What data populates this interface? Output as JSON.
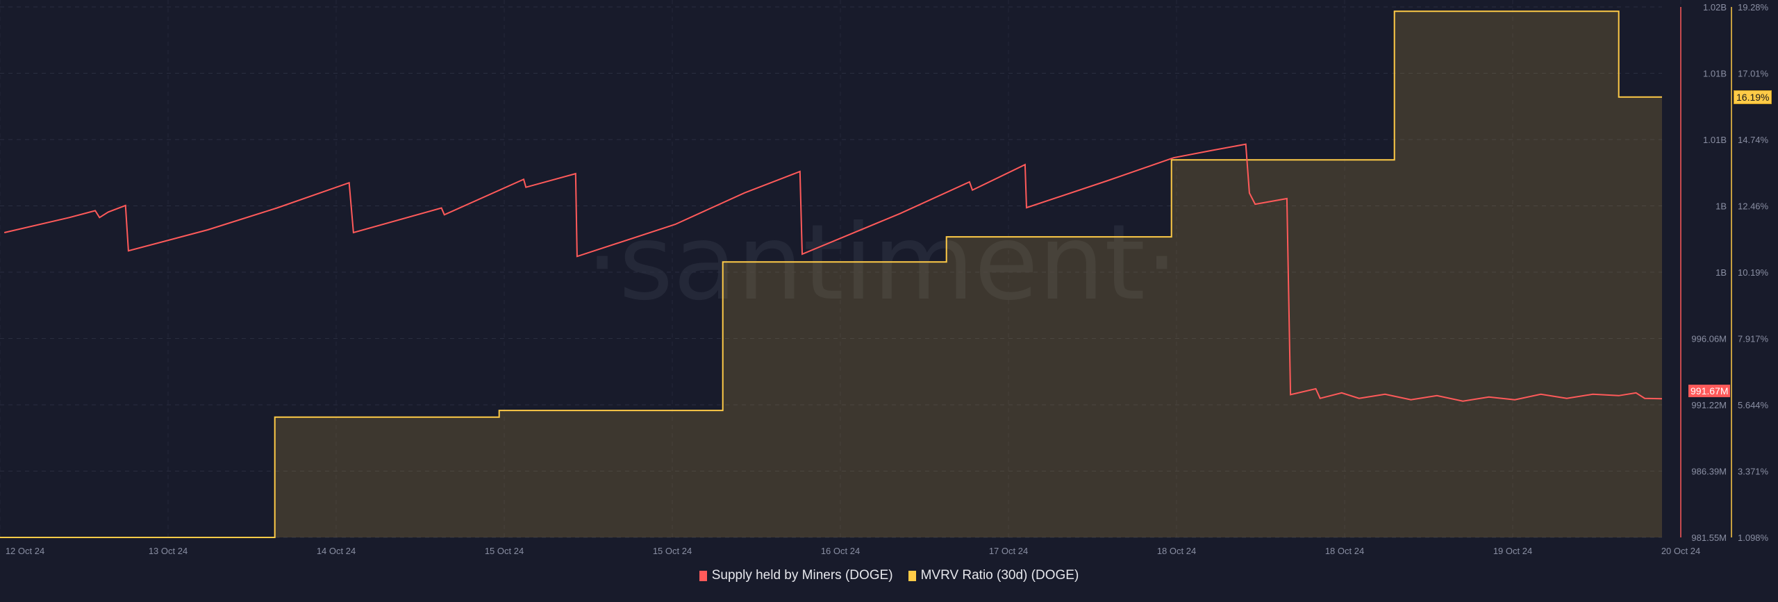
{
  "chart_data": {
    "type": "line",
    "watermark": "·santiment·",
    "x_range": [
      "2024-10-12T00:00",
      "2024-10-20T00:00"
    ],
    "x_tick_labels": [
      "12 Oct 24",
      "13 Oct 24",
      "14 Oct 24",
      "15 Oct 24",
      "15 Oct 24",
      "16 Oct 24",
      "17 Oct 24",
      "18 Oct 24",
      "18 Oct 24",
      "19 Oct 24",
      "20 Oct 24"
    ],
    "grid": true,
    "legend_position": "bottom",
    "y_left": {
      "range_millions": [
        981.55,
        1020.27
      ],
      "tick_labels": [
        "1.02B",
        "1.01B",
        "1.01B",
        "1B",
        "1B",
        "996.06M",
        "991.22M",
        "986.39M",
        "981.55M"
      ],
      "color": "#ff5a5a"
    },
    "y_right": {
      "range_percent": [
        1.098,
        19.28
      ],
      "tick_labels": [
        "19.28%",
        "17.01%",
        "14.74%",
        "12.46%",
        "10.19%",
        "7.917%",
        "5.644%",
        "3.371%",
        "1.098%"
      ],
      "color": "#ffcb47"
    },
    "series": [
      {
        "name": "Supply held by Miners (DOGE)",
        "axis": "left",
        "color": "#ff5a5a",
        "last_value_label": "991.67M",
        "last_value": 991.67,
        "points": [
          [
            "2024-10-12T00:30",
            1003.8
          ],
          [
            "2024-10-12T08:00",
            1004.9
          ],
          [
            "2024-10-12T11:00",
            1005.4
          ],
          [
            "2024-10-12T11:30",
            1004.9
          ],
          [
            "2024-10-12T12:30",
            1005.3
          ],
          [
            "2024-10-12T14:30",
            1005.78
          ],
          [
            "2024-10-12T14:50",
            1002.47
          ],
          [
            "2024-10-13T00:00",
            1004.0
          ],
          [
            "2024-10-13T08:00",
            1005.6
          ],
          [
            "2024-10-13T16:20",
            1007.44
          ],
          [
            "2024-10-13T16:50",
            1003.8
          ],
          [
            "2024-10-14T03:00",
            1005.6
          ],
          [
            "2024-10-14T03:20",
            1005.1
          ],
          [
            "2024-10-14T12:30",
            1007.69
          ],
          [
            "2024-10-14T12:45",
            1007.11
          ],
          [
            "2024-10-14T18:30",
            1008.1
          ],
          [
            "2024-10-14T18:40",
            1002.06
          ],
          [
            "2024-10-15T06:00",
            1004.4
          ],
          [
            "2024-10-15T14:00",
            1006.7
          ],
          [
            "2024-10-15T20:25",
            1008.26
          ],
          [
            "2024-10-15T20:40",
            1002.23
          ],
          [
            "2024-10-16T08:00",
            1005.2
          ],
          [
            "2024-10-16T16:00",
            1007.5
          ],
          [
            "2024-10-16T16:20",
            1006.9
          ],
          [
            "2024-10-16T22:25",
            1008.76
          ],
          [
            "2024-10-16T22:35",
            1005.62
          ],
          [
            "2024-10-17T08:00",
            1007.6
          ],
          [
            "2024-10-17T15:35",
            1009.26
          ],
          [
            "2024-10-17T20:00",
            1009.8
          ],
          [
            "2024-10-17T23:55",
            1010.25
          ],
          [
            "2024-10-18T00:20",
            1006.69
          ],
          [
            "2024-10-18T01:00",
            1005.87
          ],
          [
            "2024-10-18T04:40",
            1006.28
          ],
          [
            "2024-10-18T05:05",
            991.97
          ],
          [
            "2024-10-18T08:00",
            992.4
          ],
          [
            "2024-10-18T08:30",
            991.7
          ],
          [
            "2024-10-18T11:00",
            992.1
          ],
          [
            "2024-10-18T13:00",
            991.7
          ],
          [
            "2024-10-18T16:00",
            992.0
          ],
          [
            "2024-10-18T19:00",
            991.6
          ],
          [
            "2024-10-18T22:00",
            991.9
          ],
          [
            "2024-10-19T01:00",
            991.5
          ],
          [
            "2024-10-19T04:00",
            991.8
          ],
          [
            "2024-10-19T07:00",
            991.6
          ],
          [
            "2024-10-19T10:00",
            992.0
          ],
          [
            "2024-10-19T13:00",
            991.7
          ],
          [
            "2024-10-19T16:00",
            992.0
          ],
          [
            "2024-10-19T19:00",
            991.9
          ],
          [
            "2024-10-19T21:00",
            992.1
          ],
          [
            "2024-10-19T22:00",
            991.7
          ],
          [
            "2024-10-20T00:00",
            991.67
          ]
        ]
      },
      {
        "name": "MVRV Ratio (30d) (DOGE)",
        "axis": "right",
        "color": "#ffcb47",
        "fill": true,
        "last_value_label": "16.19%",
        "last_value": 16.19,
        "points": [
          [
            "2024-10-12T00:00",
            1.098
          ],
          [
            "2024-10-13T07:45",
            1.098
          ],
          [
            "2024-10-13T07:45",
            5.22
          ],
          [
            "2024-10-14T09:40",
            5.22
          ],
          [
            "2024-10-14T09:40",
            5.45
          ],
          [
            "2024-10-15T11:30",
            5.45
          ],
          [
            "2024-10-15T11:30",
            10.54
          ],
          [
            "2024-10-16T13:20",
            10.54
          ],
          [
            "2024-10-16T13:20",
            11.4
          ],
          [
            "2024-10-17T15:20",
            11.4
          ],
          [
            "2024-10-17T15:20",
            14.04
          ],
          [
            "2024-10-18T17:05",
            14.04
          ],
          [
            "2024-10-18T17:05",
            19.13
          ],
          [
            "2024-10-19T19:00",
            19.13
          ],
          [
            "2024-10-19T19:00",
            16.19
          ],
          [
            "2024-10-20T00:00",
            16.19
          ]
        ]
      }
    ]
  },
  "legend": {
    "items": [
      {
        "label": "Supply held by Miners (DOGE)",
        "color": "#ff5a5a"
      },
      {
        "label": "MVRV Ratio (30d) (DOGE)",
        "color": "#ffcb47"
      }
    ]
  }
}
